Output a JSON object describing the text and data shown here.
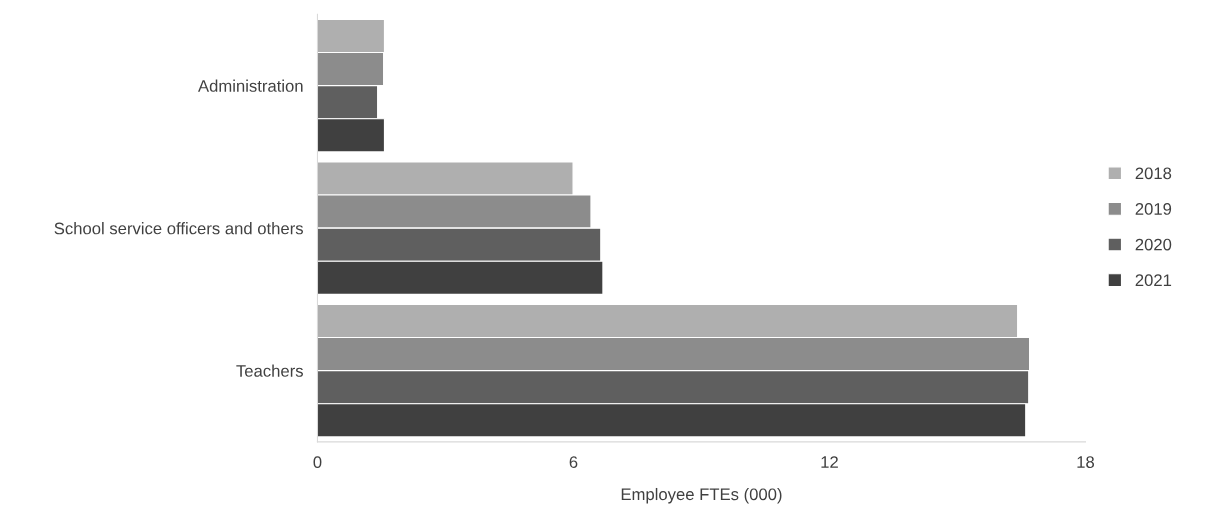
{
  "chart_data": {
    "type": "bar",
    "orientation": "horizontal",
    "categories": [
      "Administration",
      "School service officers and others",
      "Teachers"
    ],
    "series": [
      {
        "name": "2018",
        "color": "#afafaf",
        "values": [
          1.57,
          5.99,
          16.41
        ]
      },
      {
        "name": "2019",
        "color": "#8c8c8c",
        "values": [
          1.55,
          6.41,
          16.69
        ]
      },
      {
        "name": "2020",
        "color": "#5f5f5f",
        "values": [
          1.41,
          6.64,
          16.67
        ]
      },
      {
        "name": "2021",
        "color": "#404040",
        "values": [
          1.57,
          6.69,
          16.6
        ]
      }
    ],
    "xlabel": "Employee FTEs (000)",
    "xlim": [
      0,
      18
    ],
    "xticks": [
      0,
      6,
      12,
      18
    ],
    "grid": false,
    "legend": "right"
  }
}
